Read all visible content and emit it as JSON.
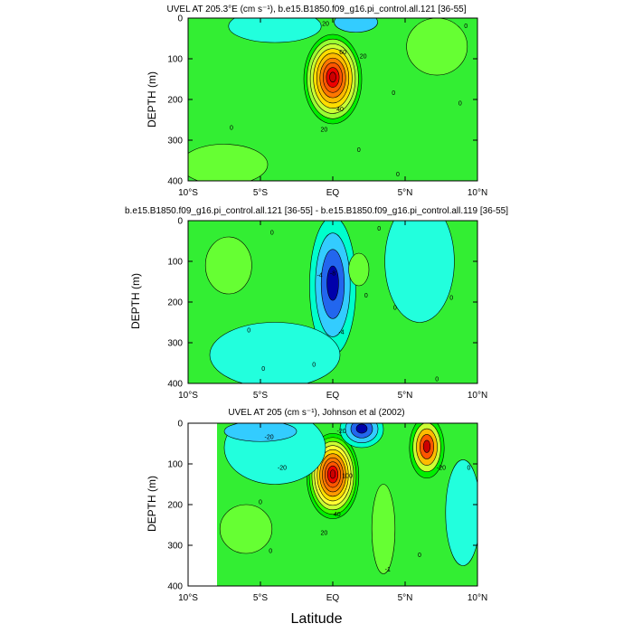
{
  "figure": {
    "xlabel": "Latitude"
  },
  "chart_data": [
    {
      "type": "contour",
      "title": "UVEL AT 205.3°E (cm s⁻¹), b.e15.B1850.f09_g16.pi_control.all.121 [36-55]",
      "xlabel": "",
      "ylabel": "DEPTH (m)",
      "xlim": [
        -10,
        10
      ],
      "ylim": [
        400,
        0
      ],
      "x_ticks": [
        -10,
        -5,
        0,
        5,
        10
      ],
      "x_tick_labels": [
        "10°S",
        "5°S",
        "EQ",
        "5°N",
        "10°N"
      ],
      "y_ticks": [
        0,
        100,
        200,
        300,
        400
      ],
      "y_tick_labels": [
        "0",
        "100",
        "200",
        "300",
        "400"
      ],
      "background_level": 0,
      "features": [
        {
          "kind": "core",
          "lat": 0.0,
          "depth": 150,
          "peak": 90,
          "lat_radius": 2.0,
          "depth_radius": 110,
          "contour_interval": 10,
          "palette": "positive"
        },
        {
          "kind": "blob",
          "lat": 7.2,
          "depth": 70,
          "level": 10,
          "lat_radius": 2.1,
          "depth_radius": 70
        },
        {
          "kind": "blob",
          "lat": -4.0,
          "depth": 20,
          "level": -10,
          "lat_radius": 3.2,
          "depth_radius": 40
        },
        {
          "kind": "blob",
          "lat": 1.6,
          "depth": 10,
          "level": -20,
          "lat_radius": 1.5,
          "depth_radius": 25
        },
        {
          "kind": "blob",
          "lat": -7.5,
          "depth": 360,
          "level": 10,
          "lat_radius": 3.0,
          "depth_radius": 50
        }
      ],
      "contour_labels": [
        {
          "text": "20",
          "lat": -0.5,
          "depth": 15
        },
        {
          "text": "60",
          "lat": 0.7,
          "depth": 85
        },
        {
          "text": "20",
          "lat": 2.1,
          "depth": 95
        },
        {
          "text": "40",
          "lat": 0.5,
          "depth": 225
        },
        {
          "text": "20",
          "lat": -0.6,
          "depth": 275
        },
        {
          "text": "0",
          "lat": -7.0,
          "depth": 270
        },
        {
          "text": "0",
          "lat": 4.2,
          "depth": 185
        },
        {
          "text": "0",
          "lat": 9.2,
          "depth": 20
        },
        {
          "text": "0",
          "lat": 8.8,
          "depth": 210
        },
        {
          "text": "0",
          "lat": 1.8,
          "depth": 325
        },
        {
          "text": "0",
          "lat": 4.5,
          "depth": 385
        }
      ]
    },
    {
      "type": "contour",
      "title": "b.e15.B1850.f09_g16.pi_control.all.121 [36-55] - b.e15.B1850.f09_g16.pi_control.all.119 [36-55]",
      "xlabel": "",
      "ylabel": "DEPTH (m)",
      "xlim": [
        -10,
        10
      ],
      "ylim": [
        400,
        0
      ],
      "x_ticks": [
        -10,
        -5,
        0,
        5,
        10
      ],
      "x_tick_labels": [
        "10°S",
        "5°S",
        "EQ",
        "5°N",
        "10°N"
      ],
      "y_ticks": [
        0,
        100,
        200,
        300,
        400
      ],
      "y_tick_labels": [
        "0",
        "100",
        "200",
        "300",
        "400"
      ],
      "background_level": 0,
      "features": [
        {
          "kind": "core",
          "lat": 0.0,
          "depth": 160,
          "peak": -8,
          "lat_radius": 1.6,
          "depth_radius": 170,
          "contour_interval": 2,
          "palette": "negative"
        },
        {
          "kind": "blob",
          "lat": -7.2,
          "depth": 110,
          "level": 2,
          "lat_radius": 1.6,
          "depth_radius": 70
        },
        {
          "kind": "blob",
          "lat": 1.8,
          "depth": 120,
          "level": 2,
          "lat_radius": 0.7,
          "depth_radius": 40
        },
        {
          "kind": "blob",
          "lat": 6.0,
          "depth": 100,
          "level": -2,
          "lat_radius": 2.4,
          "depth_radius": 150
        },
        {
          "kind": "blob",
          "lat": -4.0,
          "depth": 330,
          "level": -2,
          "lat_radius": 4.5,
          "depth_radius": 80
        }
      ],
      "contour_labels": [
        {
          "text": "-8",
          "lat": 0.0,
          "depth": 130
        },
        {
          "text": "-4",
          "lat": -0.9,
          "depth": 135
        },
        {
          "text": "-4",
          "lat": 0.6,
          "depth": 275
        },
        {
          "text": "0",
          "lat": -4.2,
          "depth": 30
        },
        {
          "text": "0",
          "lat": 3.2,
          "depth": 20
        },
        {
          "text": "0",
          "lat": -5.8,
          "depth": 270
        },
        {
          "text": "0",
          "lat": 2.3,
          "depth": 185
        },
        {
          "text": "0",
          "lat": 4.3,
          "depth": 215
        },
        {
          "text": "0",
          "lat": 8.2,
          "depth": 190
        },
        {
          "text": "0",
          "lat": -4.8,
          "depth": 365
        },
        {
          "text": "0",
          "lat": -1.3,
          "depth": 355
        },
        {
          "text": "0",
          "lat": 7.2,
          "depth": 390
        }
      ]
    },
    {
      "type": "contour",
      "title": "UVEL AT 205 (cm s⁻¹), Johnson et al (2002)",
      "xlabel": "Latitude",
      "ylabel": "DEPTH (m)",
      "xlim": [
        -10,
        10
      ],
      "ylim": [
        400,
        0
      ],
      "x_ticks": [
        -10,
        -5,
        0,
        5,
        10
      ],
      "x_tick_labels": [
        "10°S",
        "5°S",
        "EQ",
        "5°N",
        "10°N"
      ],
      "y_ticks": [
        0,
        100,
        200,
        300,
        400
      ],
      "y_tick_labels": [
        "0",
        "100",
        "200",
        "300",
        "400"
      ],
      "data_lat_range": [
        -8,
        10
      ],
      "background_level": 0,
      "features": [
        {
          "kind": "core",
          "lat": 0.0,
          "depth": 130,
          "peak": 100,
          "lat_radius": 1.8,
          "depth_radius": 105,
          "contour_interval": 10,
          "palette": "positive"
        },
        {
          "kind": "core",
          "lat": 6.5,
          "depth": 60,
          "peak": 50,
          "lat_radius": 1.2,
          "depth_radius": 75,
          "contour_interval": 10,
          "palette": "positive"
        },
        {
          "kind": "core",
          "lat": 2.0,
          "depth": 15,
          "peak": -40,
          "lat_radius": 1.5,
          "depth_radius": 45,
          "contour_interval": 10,
          "palette": "negative"
        },
        {
          "kind": "blob",
          "lat": -4.0,
          "depth": 60,
          "level": -10,
          "lat_radius": 3.5,
          "depth_radius": 90
        },
        {
          "kind": "blob",
          "lat": -5.0,
          "depth": 20,
          "level": -20,
          "lat_radius": 2.5,
          "depth_radius": 25
        },
        {
          "kind": "blob",
          "lat": 9.0,
          "depth": 220,
          "level": -10,
          "lat_radius": 1.2,
          "depth_radius": 130
        },
        {
          "kind": "blob",
          "lat": 3.5,
          "depth": 260,
          "level": 10,
          "lat_radius": 0.8,
          "depth_radius": 110
        },
        {
          "kind": "blob",
          "lat": -6.0,
          "depth": 260,
          "level": 10,
          "lat_radius": 1.8,
          "depth_radius": 60
        }
      ],
      "contour_labels": [
        {
          "text": "-20",
          "lat": -4.4,
          "depth": 35
        },
        {
          "text": "-20",
          "lat": -3.5,
          "depth": 110
        },
        {
          "text": "-20",
          "lat": 0.6,
          "depth": 20
        },
        {
          "text": "-20",
          "lat": 7.5,
          "depth": 110
        },
        {
          "text": "40",
          "lat": 0.3,
          "depth": 225
        },
        {
          "text": "20",
          "lat": -0.6,
          "depth": 270
        },
        {
          "text": "100",
          "lat": 1.0,
          "depth": 130
        },
        {
          "text": "0",
          "lat": -5.0,
          "depth": 195
        },
        {
          "text": "0",
          "lat": 9.4,
          "depth": 110
        },
        {
          "text": "0",
          "lat": -4.3,
          "depth": 315
        },
        {
          "text": "0",
          "lat": 6.0,
          "depth": 325
        },
        {
          "text": "-1",
          "lat": 3.8,
          "depth": 360
        }
      ]
    }
  ]
}
